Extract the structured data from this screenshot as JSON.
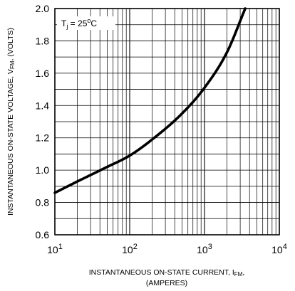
{
  "chart_data": {
    "type": "line",
    "x_scale": "log",
    "xlim": [
      10,
      10000
    ],
    "ylim": [
      0.6,
      2.0
    ],
    "grid": true,
    "x_tick_labels": [
      {
        "base": "10",
        "exp": "1"
      },
      {
        "base": "10",
        "exp": "2"
      },
      {
        "base": "10",
        "exp": "3"
      },
      {
        "base": "10",
        "exp": "4"
      }
    ],
    "y_ticks": [
      0.6,
      0.8,
      1.0,
      1.2,
      1.4,
      1.6,
      1.8,
      2.0
    ],
    "y_tick_labels": [
      "0.6",
      "0.8",
      "1.0",
      "1.2",
      "1.4",
      "1.6",
      "1.8",
      "2.0"
    ],
    "xlabel": {
      "main": "INSTANTANEOUS ON-STATE CURRENT, I",
      "sub": "FM",
      "tail": ",",
      "line2": "(AMPERES)"
    },
    "ylabel": {
      "main": "INSTANTANEOUS ON-STATE VOLTAGE, V",
      "sub": "FM",
      "tail": ", (VOLTS)"
    },
    "annotation": {
      "prefix": "T",
      "sub": "j",
      "mid": " = 25",
      "sup": "o",
      "suffix": "C"
    },
    "series": [
      {
        "x": [
          10,
          20,
          50,
          100,
          200,
          500,
          1000,
          2000,
          3500
        ],
        "y": [
          0.86,
          0.93,
          1.02,
          1.09,
          1.19,
          1.35,
          1.51,
          1.73,
          2.0
        ]
      }
    ]
  }
}
